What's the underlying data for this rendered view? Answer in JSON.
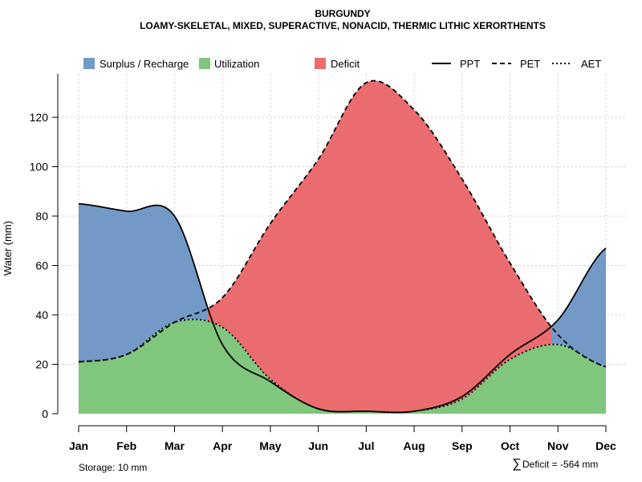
{
  "chart_data": {
    "type": "area",
    "title": "BURGUNDY",
    "subtitle": "LOAMY-SKELETAL, MIXED, SUPERACTIVE, NONACID, THERMIC LITHIC XERORTHENTS",
    "xlabel": "",
    "ylabel": "Water (mm)",
    "ylim": [
      0,
      135
    ],
    "yticks": [
      0,
      20,
      40,
      60,
      80,
      100,
      120
    ],
    "categories": [
      "Jan",
      "Feb",
      "Mar",
      "Apr",
      "May",
      "Jun",
      "Jul",
      "Aug",
      "Sep",
      "Oct",
      "Nov",
      "Dec"
    ],
    "series": [
      {
        "name": "PPT",
        "values": [
          85,
          82,
          80,
          28,
          13,
          2,
          1,
          1,
          7,
          24,
          38,
          67
        ]
      },
      {
        "name": "PET",
        "values": [
          21,
          24,
          37,
          47,
          77,
          103,
          134,
          123,
          95,
          61,
          32,
          19
        ]
      },
      {
        "name": "AET",
        "values": [
          21,
          24,
          37,
          35,
          14,
          2,
          1,
          1,
          6,
          22,
          28,
          19
        ]
      }
    ],
    "legend": {
      "fills": [
        {
          "label": "Surplus / Recharge",
          "color": "#7399c6"
        },
        {
          "label": "Utilization",
          "color": "#80c67d"
        },
        {
          "label": "Deficit",
          "color": "#ea6c6e"
        }
      ],
      "lines": [
        {
          "label": "PPT",
          "dash": "solid"
        },
        {
          "label": "PET",
          "dash": "dashed"
        },
        {
          "label": "AET",
          "dash": "dotted"
        }
      ],
      "position": "top"
    },
    "annotations": {
      "storage": "Storage: 10 mm",
      "deficit_symbol": "∑",
      "deficit": "Deficit = -564 mm"
    },
    "grid": true
  },
  "colors": {
    "surplus": "#7399c6",
    "utilization": "#80c67d",
    "deficit": "#ea6c6e"
  }
}
